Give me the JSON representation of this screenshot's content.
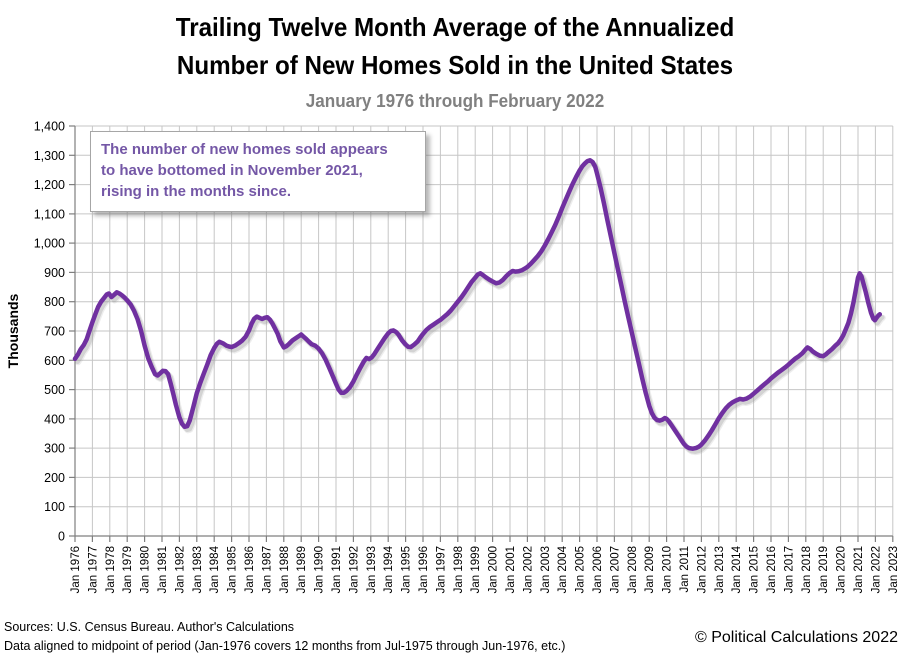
{
  "title": {
    "line1": "Trailing Twelve Month Average of the Annualized",
    "line2": "Number of New Homes Sold in the United States"
  },
  "subtitle": "January 1976 through February 2022",
  "annotation": {
    "line1": "The number of new homes sold appears",
    "line2": "to have bottomed in November 2021,",
    "line3": "rising in the months since."
  },
  "footer": {
    "sources": "Sources: U.S. Census Bureau. Author's Calculations",
    "note": "Data aligned to midpoint of period (Jan-1976 covers 12 months from Jul-1975 through Jun-1976, etc.)",
    "copyright": "© Political Calculations 2022"
  },
  "colors": {
    "line": "#7030A0",
    "line_shadow": "#9a9a9a",
    "grid": "#c6c6c6",
    "axis": "#7f7f7f",
    "tick_label": "#000000",
    "subtitle": "#808080",
    "annotation_text": "#7457a6",
    "annotation_border": "#a6a6a6"
  },
  "chart_data": {
    "type": "line",
    "title": "Trailing Twelve Month Average of the Annualized Number of New Homes Sold in the United States",
    "subtitle": "January 1976 through February 2022",
    "xlabel": "",
    "ylabel": "Thousands",
    "units": "thousands of homes (annualized, trailing twelve month average)",
    "ylim": [
      0,
      1400
    ],
    "ytick_step": 100,
    "y_tick_labels": [
      "0",
      "100",
      "200",
      "300",
      "400",
      "500",
      "600",
      "700",
      "800",
      "900",
      "1,000",
      "1,100",
      "1,200",
      "1,300",
      "1,400"
    ],
    "x_range": [
      1976,
      2023
    ],
    "x_tick_labels": [
      "Jan 1976",
      "Jan 1977",
      "Jan 1978",
      "Jan 1979",
      "Jan 1980",
      "Jan 1981",
      "Jan 1982",
      "Jan 1983",
      "Jan 1984",
      "Jan 1985",
      "Jan 1986",
      "Jan 1987",
      "Jan 1988",
      "Jan 1989",
      "Jan 1990",
      "Jan 1991",
      "Jan 1992",
      "Jan 1993",
      "Jan 1994",
      "Jan 1995",
      "Jan 1996",
      "Jan 1997",
      "Jan 1998",
      "Jan 1999",
      "Jan 2000",
      "Jan 2001",
      "Jan 2002",
      "Jan 2003",
      "Jan 2004",
      "Jan 2005",
      "Jan 2006",
      "Jan 2007",
      "Jan 2008",
      "Jan 2009",
      "Jan 2010",
      "Jan 2011",
      "Jan 2012",
      "Jan 2013",
      "Jan 2014",
      "Jan 2015",
      "Jan 2016",
      "Jan 2017",
      "Jan 2018",
      "Jan 2019",
      "Jan 2020",
      "Jan 2021",
      "Jan 2022",
      "Jan 2023"
    ],
    "grid": true,
    "legend": false,
    "series": [
      {
        "name": "Trailing twelve month average of annualized new homes sold",
        "color": "#7030A0",
        "points": [
          [
            1976.0,
            605
          ],
          [
            1976.17,
            620
          ],
          [
            1976.33,
            638
          ],
          [
            1976.5,
            652
          ],
          [
            1976.67,
            672
          ],
          [
            1976.83,
            700
          ],
          [
            1977.0,
            730
          ],
          [
            1977.17,
            758
          ],
          [
            1977.33,
            782
          ],
          [
            1977.5,
            800
          ],
          [
            1977.67,
            813
          ],
          [
            1977.83,
            825
          ],
          [
            1977.95,
            828
          ],
          [
            1978.1,
            816
          ],
          [
            1978.25,
            824
          ],
          [
            1978.4,
            832
          ],
          [
            1978.55,
            828
          ],
          [
            1978.7,
            822
          ],
          [
            1978.85,
            814
          ],
          [
            1979.0,
            805
          ],
          [
            1979.2,
            790
          ],
          [
            1979.4,
            768
          ],
          [
            1979.6,
            740
          ],
          [
            1979.8,
            700
          ],
          [
            1980.0,
            650
          ],
          [
            1980.2,
            608
          ],
          [
            1980.4,
            578
          ],
          [
            1980.6,
            553
          ],
          [
            1980.75,
            548
          ],
          [
            1980.9,
            556
          ],
          [
            1981.05,
            564
          ],
          [
            1981.2,
            563
          ],
          [
            1981.35,
            553
          ],
          [
            1981.5,
            520
          ],
          [
            1981.65,
            485
          ],
          [
            1981.8,
            448
          ],
          [
            1982.0,
            405
          ],
          [
            1982.15,
            383
          ],
          [
            1982.3,
            373
          ],
          [
            1982.45,
            375
          ],
          [
            1982.6,
            395
          ],
          [
            1982.8,
            440
          ],
          [
            1983.0,
            488
          ],
          [
            1983.2,
            523
          ],
          [
            1983.4,
            555
          ],
          [
            1983.6,
            585
          ],
          [
            1983.8,
            618
          ],
          [
            1984.0,
            642
          ],
          [
            1984.15,
            656
          ],
          [
            1984.3,
            663
          ],
          [
            1984.5,
            658
          ],
          [
            1984.7,
            650
          ],
          [
            1984.85,
            647
          ],
          [
            1985.0,
            645
          ],
          [
            1985.2,
            650
          ],
          [
            1985.4,
            658
          ],
          [
            1985.6,
            667
          ],
          [
            1985.8,
            680
          ],
          [
            1986.0,
            702
          ],
          [
            1986.15,
            725
          ],
          [
            1986.3,
            742
          ],
          [
            1986.45,
            749
          ],
          [
            1986.6,
            745
          ],
          [
            1986.75,
            741
          ],
          [
            1986.9,
            745
          ],
          [
            1987.05,
            747
          ],
          [
            1987.2,
            739
          ],
          [
            1987.35,
            725
          ],
          [
            1987.5,
            708
          ],
          [
            1987.65,
            690
          ],
          [
            1987.8,
            665
          ],
          [
            1988.0,
            644
          ],
          [
            1988.15,
            648
          ],
          [
            1988.3,
            656
          ],
          [
            1988.5,
            668
          ],
          [
            1988.7,
            676
          ],
          [
            1988.85,
            682
          ],
          [
            1989.0,
            688
          ],
          [
            1989.15,
            680
          ],
          [
            1989.3,
            672
          ],
          [
            1989.45,
            663
          ],
          [
            1989.6,
            655
          ],
          [
            1989.8,
            650
          ],
          [
            1990.0,
            640
          ],
          [
            1990.2,
            624
          ],
          [
            1990.4,
            602
          ],
          [
            1990.6,
            576
          ],
          [
            1990.8,
            548
          ],
          [
            1991.0,
            520
          ],
          [
            1991.15,
            500
          ],
          [
            1991.3,
            489
          ],
          [
            1991.45,
            489
          ],
          [
            1991.6,
            495
          ],
          [
            1991.8,
            508
          ],
          [
            1992.0,
            528
          ],
          [
            1992.2,
            552
          ],
          [
            1992.4,
            575
          ],
          [
            1992.6,
            596
          ],
          [
            1992.75,
            608
          ],
          [
            1992.9,
            604
          ],
          [
            1993.05,
            610
          ],
          [
            1993.2,
            621
          ],
          [
            1993.4,
            640
          ],
          [
            1993.6,
            658
          ],
          [
            1993.8,
            676
          ],
          [
            1994.0,
            692
          ],
          [
            1994.15,
            700
          ],
          [
            1994.3,
            702
          ],
          [
            1994.45,
            697
          ],
          [
            1994.6,
            687
          ],
          [
            1994.8,
            668
          ],
          [
            1995.0,
            654
          ],
          [
            1995.15,
            646
          ],
          [
            1995.3,
            645
          ],
          [
            1995.5,
            654
          ],
          [
            1995.7,
            665
          ],
          [
            1995.85,
            678
          ],
          [
            1996.0,
            690
          ],
          [
            1996.2,
            704
          ],
          [
            1996.4,
            714
          ],
          [
            1996.6,
            722
          ],
          [
            1996.8,
            730
          ],
          [
            1997.0,
            738
          ],
          [
            1997.2,
            748
          ],
          [
            1997.4,
            758
          ],
          [
            1997.6,
            770
          ],
          [
            1997.8,
            785
          ],
          [
            1998.0,
            800
          ],
          [
            1998.2,
            815
          ],
          [
            1998.4,
            832
          ],
          [
            1998.6,
            850
          ],
          [
            1998.8,
            868
          ],
          [
            1999.0,
            882
          ],
          [
            1999.15,
            893
          ],
          [
            1999.3,
            897
          ],
          [
            1999.45,
            891
          ],
          [
            1999.6,
            884
          ],
          [
            1999.8,
            876
          ],
          [
            2000.0,
            869
          ],
          [
            2000.2,
            863
          ],
          [
            2000.4,
            866
          ],
          [
            2000.6,
            875
          ],
          [
            2000.8,
            888
          ],
          [
            2001.0,
            899
          ],
          [
            2001.15,
            905
          ],
          [
            2001.3,
            903
          ],
          [
            2001.5,
            904
          ],
          [
            2001.7,
            908
          ],
          [
            2001.85,
            913
          ],
          [
            2002.0,
            919
          ],
          [
            2002.2,
            930
          ],
          [
            2002.4,
            943
          ],
          [
            2002.6,
            956
          ],
          [
            2002.8,
            972
          ],
          [
            2003.0,
            992
          ],
          [
            2003.2,
            1014
          ],
          [
            2003.4,
            1038
          ],
          [
            2003.6,
            1062
          ],
          [
            2003.8,
            1090
          ],
          [
            2004.0,
            1120
          ],
          [
            2004.2,
            1148
          ],
          [
            2004.4,
            1176
          ],
          [
            2004.6,
            1202
          ],
          [
            2004.8,
            1226
          ],
          [
            2005.0,
            1248
          ],
          [
            2005.15,
            1262
          ],
          [
            2005.3,
            1272
          ],
          [
            2005.45,
            1280
          ],
          [
            2005.6,
            1283
          ],
          [
            2005.75,
            1277
          ],
          [
            2005.9,
            1260
          ],
          [
            2006.0,
            1238
          ],
          [
            2006.2,
            1190
          ],
          [
            2006.4,
            1135
          ],
          [
            2006.6,
            1078
          ],
          [
            2006.8,
            1022
          ],
          [
            2007.0,
            966
          ],
          [
            2007.2,
            910
          ],
          [
            2007.4,
            855
          ],
          [
            2007.6,
            800
          ],
          [
            2007.8,
            747
          ],
          [
            2008.0,
            695
          ],
          [
            2008.2,
            642
          ],
          [
            2008.4,
            590
          ],
          [
            2008.6,
            538
          ],
          [
            2008.8,
            489
          ],
          [
            2009.0,
            445
          ],
          [
            2009.15,
            420
          ],
          [
            2009.3,
            404
          ],
          [
            2009.45,
            396
          ],
          [
            2009.6,
            394
          ],
          [
            2009.75,
            397
          ],
          [
            2009.9,
            403
          ],
          [
            2010.0,
            400
          ],
          [
            2010.15,
            390
          ],
          [
            2010.3,
            377
          ],
          [
            2010.5,
            359
          ],
          [
            2010.7,
            341
          ],
          [
            2010.85,
            327
          ],
          [
            2011.0,
            314
          ],
          [
            2011.15,
            305
          ],
          [
            2011.3,
            300
          ],
          [
            2011.5,
            298
          ],
          [
            2011.7,
            301
          ],
          [
            2011.85,
            305
          ],
          [
            2012.0,
            312
          ],
          [
            2012.2,
            326
          ],
          [
            2012.4,
            343
          ],
          [
            2012.6,
            361
          ],
          [
            2012.8,
            381
          ],
          [
            2013.0,
            402
          ],
          [
            2013.2,
            420
          ],
          [
            2013.4,
            436
          ],
          [
            2013.6,
            448
          ],
          [
            2013.8,
            457
          ],
          [
            2014.0,
            463
          ],
          [
            2014.2,
            468
          ],
          [
            2014.4,
            466
          ],
          [
            2014.6,
            469
          ],
          [
            2014.8,
            476
          ],
          [
            2015.0,
            486
          ],
          [
            2015.2,
            496
          ],
          [
            2015.4,
            507
          ],
          [
            2015.6,
            517
          ],
          [
            2015.8,
            527
          ],
          [
            2016.0,
            538
          ],
          [
            2016.2,
            548
          ],
          [
            2016.4,
            558
          ],
          [
            2016.6,
            566
          ],
          [
            2016.8,
            575
          ],
          [
            2017.0,
            585
          ],
          [
            2017.2,
            596
          ],
          [
            2017.4,
            606
          ],
          [
            2017.6,
            614
          ],
          [
            2017.8,
            624
          ],
          [
            2018.0,
            638
          ],
          [
            2018.1,
            644
          ],
          [
            2018.25,
            639
          ],
          [
            2018.4,
            630
          ],
          [
            2018.6,
            622
          ],
          [
            2018.8,
            616
          ],
          [
            2019.0,
            614
          ],
          [
            2019.15,
            620
          ],
          [
            2019.3,
            628
          ],
          [
            2019.5,
            638
          ],
          [
            2019.7,
            650
          ],
          [
            2019.85,
            658
          ],
          [
            2020.0,
            670
          ],
          [
            2020.15,
            685
          ],
          [
            2020.3,
            706
          ],
          [
            2020.45,
            728
          ],
          [
            2020.6,
            760
          ],
          [
            2020.75,
            800
          ],
          [
            2020.9,
            850
          ],
          [
            2021.0,
            882
          ],
          [
            2021.1,
            897
          ],
          [
            2021.2,
            886
          ],
          [
            2021.3,
            865
          ],
          [
            2021.45,
            832
          ],
          [
            2021.6,
            795
          ],
          [
            2021.75,
            762
          ],
          [
            2021.88,
            742
          ],
          [
            2021.97,
            737
          ],
          [
            2022.08,
            746
          ],
          [
            2022.17,
            753
          ],
          [
            2022.25,
            757
          ]
        ]
      }
    ]
  }
}
